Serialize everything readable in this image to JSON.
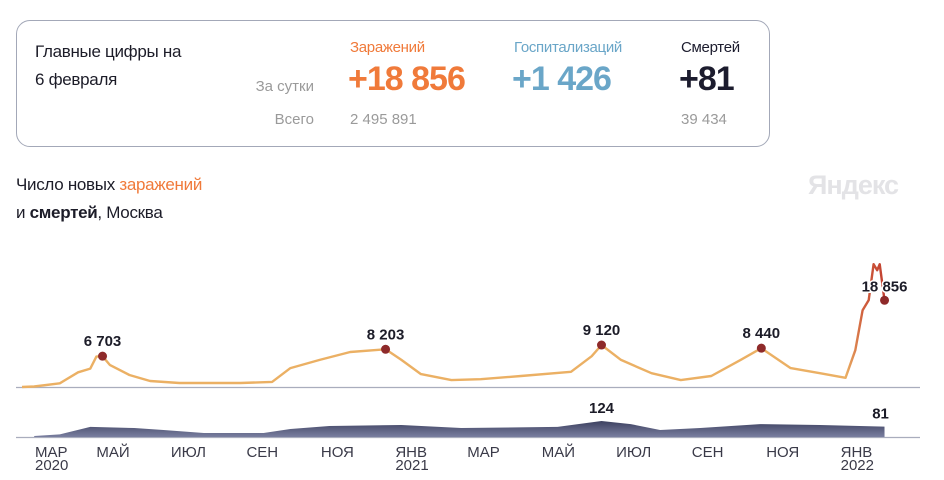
{
  "summary": {
    "heading_line1": "Главные цифры на",
    "heading_line2": "6 февраля",
    "row_daily": "За сутки",
    "row_total": "Всего",
    "infections": {
      "label": "Заражений",
      "daily": "+18 856",
      "total": "2 495 891",
      "color": "#f07a3a"
    },
    "hospitalizations": {
      "label": "Госпитализаций",
      "daily": "+1 426",
      "color": "#6aa6c8"
    },
    "deaths": {
      "label": "Смертей",
      "daily": "+81",
      "total": "39 434",
      "color": "#1c1c2e"
    }
  },
  "chart_title": {
    "part1": "Число новых ",
    "part2": "заражений",
    "line2_part1": "и ",
    "line2_part2": "смертей",
    "line2_part3": ", Москва"
  },
  "logo": "Яндекс",
  "chart_data": [
    {
      "type": "line",
      "series_label": "заражений",
      "color": "#ebb064",
      "surge_color": "#c94a35",
      "point_color": "#8e2a2a",
      "points": [
        [
          "2020-03-01",
          0
        ],
        [
          "2020-03-11",
          100
        ],
        [
          "2020-04-01",
          800
        ],
        [
          "2020-04-16",
          3200
        ],
        [
          "2020-04-26",
          4000
        ],
        [
          "2020-05-01",
          6600
        ],
        [
          "2020-05-06",
          6703
        ],
        [
          "2020-05-12",
          4800
        ],
        [
          "2020-05-28",
          2600
        ],
        [
          "2020-06-14",
          1300
        ],
        [
          "2020-07-08",
          870
        ],
        [
          "2020-08-27",
          870
        ],
        [
          "2020-09-22",
          1100
        ],
        [
          "2020-10-07",
          4100
        ],
        [
          "2020-10-31",
          5900
        ],
        [
          "2020-11-25",
          7600
        ],
        [
          "2020-12-24",
          8203
        ],
        [
          "2021-01-06",
          5900
        ],
        [
          "2021-01-22",
          2800
        ],
        [
          "2021-02-16",
          1500
        ],
        [
          "2021-03-12",
          1700
        ],
        [
          "2021-04-14",
          2400
        ],
        [
          "2021-05-25",
          3300
        ],
        [
          "2021-06-11",
          6700
        ],
        [
          "2021-06-19",
          9120
        ],
        [
          "2021-07-05",
          5900
        ],
        [
          "2021-07-30",
          3000
        ],
        [
          "2021-08-23",
          1500
        ],
        [
          "2021-09-17",
          2400
        ],
        [
          "2021-10-11",
          5900
        ],
        [
          "2021-10-28",
          8440
        ],
        [
          "2021-11-21",
          4100
        ],
        [
          "2021-12-15",
          3000
        ],
        [
          "2022-01-05",
          2000
        ],
        [
          "2022-01-13",
          8000
        ],
        [
          "2022-01-19",
          16700
        ],
        [
          "2022-01-24",
          18900
        ],
        [
          "2022-01-28",
          26700
        ],
        [
          "2022-01-31",
          25400
        ],
        [
          "2022-02-02",
          26700
        ],
        [
          "2022-02-06",
          18856
        ]
      ],
      "annotations": [
        {
          "date": "2020-05-06",
          "value": 6703,
          "label": "6 703"
        },
        {
          "date": "2020-12-24",
          "value": 8203,
          "label": "8 203"
        },
        {
          "date": "2021-06-19",
          "value": 9120,
          "label": "9 120"
        },
        {
          "date": "2021-10-28",
          "value": 8440,
          "label": "8 440"
        },
        {
          "date": "2022-02-06",
          "value": 18856,
          "label": "18 856"
        }
      ]
    },
    {
      "type": "area",
      "series_label": "смертей",
      "color": "#5a5f80",
      "points": [
        [
          "2020-03-11",
          8
        ],
        [
          "2020-04-01",
          20
        ],
        [
          "2020-04-26",
          78
        ],
        [
          "2020-06-01",
          70
        ],
        [
          "2020-06-25",
          54
        ],
        [
          "2020-07-28",
          31
        ],
        [
          "2020-09-15",
          31
        ],
        [
          "2020-10-07",
          62
        ],
        [
          "2020-11-08",
          85
        ],
        [
          "2021-01-06",
          93
        ],
        [
          "2021-02-24",
          70
        ],
        [
          "2021-05-14",
          78
        ],
        [
          "2021-06-19",
          124
        ],
        [
          "2021-07-13",
          100
        ],
        [
          "2021-08-06",
          54
        ],
        [
          "2021-09-08",
          70
        ],
        [
          "2021-10-27",
          100
        ],
        [
          "2021-12-15",
          93
        ],
        [
          "2022-02-06",
          81
        ]
      ],
      "annotations": [
        {
          "date": "2021-06-19",
          "value": 124,
          "label": "124"
        },
        {
          "date": "2022-02-06",
          "value": 81,
          "label": "81"
        }
      ]
    }
  ],
  "x_axis": {
    "ticks": [
      {
        "date": "2020-03-01",
        "label": "МАР",
        "year": "2020"
      },
      {
        "date": "2020-05-01",
        "label": "МАЙ"
      },
      {
        "date": "2020-07-01",
        "label": "ИЮЛ"
      },
      {
        "date": "2020-09-01",
        "label": "СЕН"
      },
      {
        "date": "2020-11-01",
        "label": "НОЯ"
      },
      {
        "date": "2021-01-01",
        "label": "ЯНВ",
        "year": "2021"
      },
      {
        "date": "2021-03-01",
        "label": "МАР"
      },
      {
        "date": "2021-05-01",
        "label": "МАЙ"
      },
      {
        "date": "2021-07-01",
        "label": "ИЮЛ"
      },
      {
        "date": "2021-09-01",
        "label": "СЕН"
      },
      {
        "date": "2021-11-01",
        "label": "НОЯ"
      },
      {
        "date": "2022-01-01",
        "label": "ЯНВ",
        "year": "2022"
      }
    ]
  }
}
